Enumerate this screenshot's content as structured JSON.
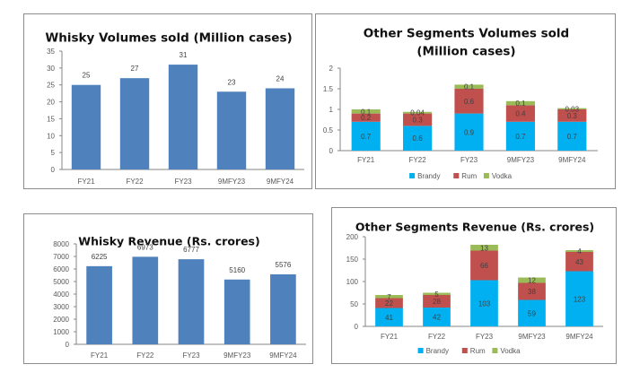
{
  "chart_data": [
    {
      "id": "whisky-volumes",
      "type": "bar",
      "title": "Whisky Volumes sold (Million cases)",
      "categories": [
        "FY21",
        "FY22",
        "FY23",
        "9MFY23",
        "9MFY24"
      ],
      "values": [
        25,
        27,
        31,
        23,
        24
      ],
      "data_labels": [
        "25",
        "27",
        "31",
        "23",
        "24"
      ],
      "ylim": [
        0,
        35
      ],
      "yticks": [
        0,
        5,
        10,
        15,
        20,
        25,
        30,
        35
      ],
      "xlabel": "",
      "ylabel": "",
      "grid": false,
      "color": "#4f81bd"
    },
    {
      "id": "other-volumes",
      "type": "bar",
      "stacked": true,
      "title": "Other Segments Volumes sold (Million cases)",
      "title_lines": [
        "Other Segments Volumes sold",
        "(Million cases)"
      ],
      "categories": [
        "FY21",
        "FY22",
        "FY23",
        "9MFY23",
        "9MFY24"
      ],
      "series": [
        {
          "name": "Brandy",
          "values": [
            0.7,
            0.6,
            0.9,
            0.7,
            0.7
          ],
          "color": "#00b0f0"
        },
        {
          "name": "Rum",
          "values": [
            0.2,
            0.3,
            0.6,
            0.4,
            0.3
          ],
          "color": "#c0504d"
        },
        {
          "name": "Vodka",
          "values": [
            0.1,
            0.04,
            0.1,
            0.1,
            0.03
          ],
          "color": "#9bbb59"
        }
      ],
      "data_labels": [
        [
          "0.7",
          "0.6",
          "0.9",
          "0.7",
          "0.7"
        ],
        [
          "0.2",
          "0.3",
          "0.6",
          "0.4",
          "0.3"
        ],
        [
          "0.1",
          "0.04",
          "0.1",
          "0.1",
          "0.03"
        ]
      ],
      "ylim": [
        0,
        2
      ],
      "yticks": [
        0,
        0.5,
        1,
        1.5,
        2
      ],
      "ytick_labels": [
        "0",
        "0.5",
        "1",
        "1.5",
        "2"
      ],
      "legend": "bottom",
      "grid": false
    },
    {
      "id": "whisky-revenue",
      "type": "bar",
      "title": "Whisky Revenue (Rs. crores)",
      "categories": [
        "FY21",
        "FY22",
        "FY23",
        "9MFY23",
        "9MFY24"
      ],
      "values": [
        6225,
        6973,
        6777,
        5160,
        5576
      ],
      "data_labels": [
        "6225",
        "6973",
        "6777",
        "5160",
        "5576"
      ],
      "ylim": [
        0,
        8000
      ],
      "yticks": [
        0,
        1000,
        2000,
        3000,
        4000,
        5000,
        6000,
        7000,
        8000
      ],
      "xlabel": "",
      "ylabel": "",
      "grid": false,
      "color": "#4f81bd"
    },
    {
      "id": "other-revenue",
      "type": "bar",
      "stacked": true,
      "title": "Other Segments Revenue (Rs. crores)",
      "categories": [
        "FY21",
        "FY22",
        "FY23",
        "9MFY23",
        "9MFY24"
      ],
      "series": [
        {
          "name": "Brandy",
          "values": [
            41,
            42,
            103,
            59,
            123
          ],
          "color": "#00b0f0"
        },
        {
          "name": "Rum",
          "values": [
            22,
            28,
            66,
            38,
            43
          ],
          "color": "#c0504d"
        },
        {
          "name": "Vodka",
          "values": [
            7,
            5,
            13,
            12,
            4
          ],
          "color": "#9bbb59"
        }
      ],
      "data_labels": [
        [
          "41",
          "42",
          "103",
          "59",
          "123"
        ],
        [
          "22",
          "28",
          "66",
          "38",
          "43"
        ],
        [
          "7",
          "5",
          "13",
          "12",
          "4"
        ]
      ],
      "ylim": [
        0,
        200
      ],
      "yticks": [
        0,
        50,
        100,
        150,
        200
      ],
      "legend": "bottom",
      "grid": false
    }
  ]
}
